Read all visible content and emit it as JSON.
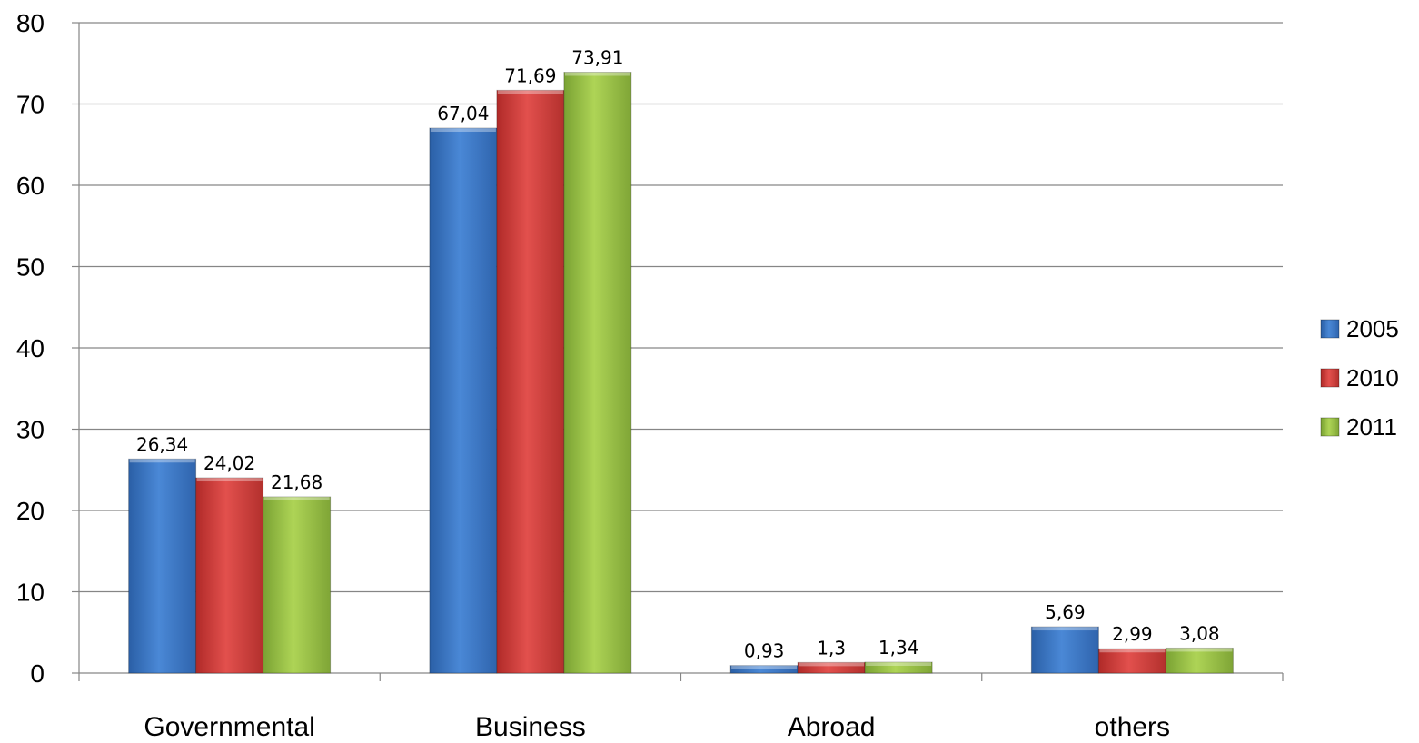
{
  "chart_data": {
    "type": "bar",
    "categories": [
      "Governmental",
      "Business",
      "Abroad",
      "others"
    ],
    "series": [
      {
        "name": "2005",
        "values": [
          26.34,
          67.04,
          0.93,
          5.69
        ],
        "labels": [
          "26,34",
          "67,04",
          "0,93",
          "5,69"
        ],
        "color": "#3a75c4"
      },
      {
        "name": "2010",
        "values": [
          24.02,
          71.69,
          1.3,
          2.99
        ],
        "labels": [
          "24,02",
          "71,69",
          "1,3",
          "2,99"
        ],
        "color": "#d63c3a"
      },
      {
        "name": "2011",
        "values": [
          21.68,
          73.91,
          1.34,
          3.08
        ],
        "labels": [
          "21,68",
          "73,91",
          "1,34",
          "3,08"
        ],
        "color": "#99c343"
      }
    ],
    "title": "",
    "xlabel": "",
    "ylabel": "",
    "ylim": [
      0,
      80
    ],
    "yticks": [
      "0",
      "10",
      "20",
      "30",
      "40",
      "50",
      "60",
      "70",
      "80"
    ],
    "grid": true,
    "legend_position": "right"
  }
}
